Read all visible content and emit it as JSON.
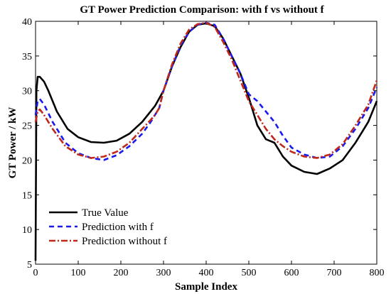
{
  "chart_data": {
    "type": "line",
    "title": "GT Power Prediction Comparison: with f vs without f",
    "xlabel": "Sample Index",
    "ylabel": "GT Power / kW",
    "xlim": [
      0,
      800
    ],
    "ylim": [
      5,
      40
    ],
    "xticks": [
      0,
      100,
      200,
      300,
      400,
      500,
      600,
      700,
      800
    ],
    "yticks": [
      5,
      10,
      15,
      20,
      25,
      30,
      35,
      40
    ],
    "grid": false,
    "legend_position": "bottom-left",
    "series": [
      {
        "name": "True Value",
        "color": "#000000",
        "style": "solid",
        "x": [
          0,
          2,
          5,
          10,
          20,
          30,
          50,
          75,
          100,
          130,
          160,
          190,
          220,
          250,
          280,
          300,
          320,
          340,
          360,
          380,
          400,
          420,
          440,
          460,
          480,
          500,
          520,
          540,
          560,
          580,
          600,
          630,
          660,
          690,
          720,
          750,
          780,
          800
        ],
        "y": [
          5.5,
          30.0,
          32.0,
          32.0,
          31.3,
          30.0,
          27.0,
          24.5,
          23.3,
          22.6,
          22.5,
          22.8,
          23.8,
          25.5,
          27.8,
          30.0,
          33.5,
          36.3,
          38.5,
          39.5,
          39.7,
          39.3,
          37.5,
          35.0,
          32.5,
          29.0,
          25.0,
          23.0,
          22.5,
          20.5,
          19.2,
          18.3,
          18.0,
          18.8,
          20.0,
          22.5,
          25.5,
          28.5
        ]
      },
      {
        "name": "Prediction with f",
        "color": "#1a1af0",
        "style": "dashed",
        "x": [
          0,
          5,
          10,
          20,
          40,
          70,
          100,
          130,
          160,
          190,
          220,
          250,
          270,
          290,
          300,
          320,
          340,
          360,
          380,
          400,
          420,
          440,
          460,
          480,
          500,
          520,
          540,
          560,
          580,
          600,
          630,
          660,
          690,
          720,
          750,
          780,
          800
        ],
        "y": [
          26.5,
          28.5,
          28.8,
          28.0,
          25.5,
          22.5,
          21.0,
          20.3,
          20.0,
          20.7,
          22.0,
          23.8,
          25.5,
          27.5,
          30.0,
          33.5,
          36.5,
          38.5,
          39.5,
          39.8,
          39.5,
          37.5,
          35.0,
          32.5,
          29.5,
          28.5,
          27.0,
          25.5,
          23.5,
          21.8,
          20.8,
          20.3,
          20.5,
          22.0,
          24.5,
          27.5,
          30.5
        ]
      },
      {
        "name": "Prediction without f",
        "color": "#c0281a",
        "style": "dashdot",
        "x": [
          0,
          5,
          10,
          20,
          40,
          70,
          100,
          130,
          160,
          190,
          220,
          250,
          270,
          280,
          290,
          300,
          320,
          340,
          360,
          380,
          400,
          420,
          440,
          460,
          480,
          500,
          520,
          540,
          560,
          580,
          600,
          630,
          660,
          690,
          720,
          750,
          780,
          800
        ],
        "y": [
          25.5,
          27.0,
          27.3,
          26.5,
          24.5,
          22.0,
          20.8,
          20.3,
          20.5,
          21.2,
          22.5,
          24.5,
          25.8,
          26.5,
          27.5,
          30.0,
          33.8,
          36.8,
          38.8,
          39.6,
          39.8,
          39.2,
          37.0,
          34.5,
          31.5,
          28.5,
          26.5,
          24.5,
          23.0,
          22.0,
          21.2,
          20.5,
          20.3,
          20.8,
          22.3,
          25.0,
          28.0,
          31.5
        ]
      }
    ]
  }
}
